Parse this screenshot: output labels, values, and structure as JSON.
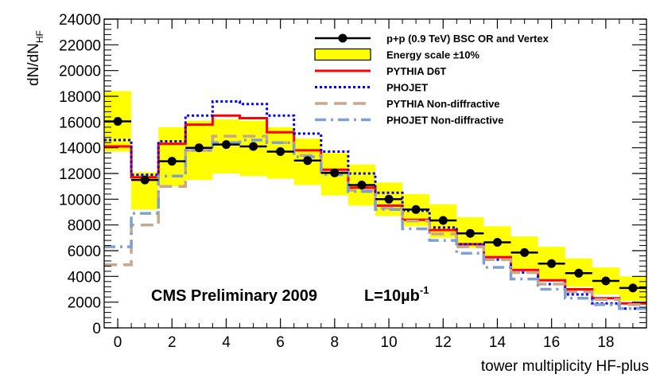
{
  "chart_data": {
    "type": "histogram",
    "xlabel": "tower multiplicity HF-plus",
    "ylabel": "dN/dN",
    "ylabel_sub": "HF",
    "xlim": [
      -0.5,
      19.5
    ],
    "ylim": [
      0,
      24000
    ],
    "x_ticks": [
      0,
      2,
      4,
      6,
      8,
      10,
      12,
      14,
      16,
      18
    ],
    "x_tick_labels": [
      "0",
      "2",
      "4",
      "6",
      "8",
      "10",
      "12",
      "14",
      "16",
      "18"
    ],
    "y_ticks": [
      0,
      2000,
      4000,
      6000,
      8000,
      10000,
      12000,
      14000,
      16000,
      18000,
      20000,
      22000,
      24000
    ],
    "y_tick_labels": [
      "0",
      "2000",
      "4000",
      "6000",
      "8000",
      "10000",
      "12000",
      "14000",
      "16000",
      "18000",
      "20000",
      "22000",
      "24000"
    ],
    "bin_edges": [
      -0.5,
      0.5,
      1.5,
      2.5,
      3.5,
      4.5,
      5.5,
      6.5,
      7.5,
      8.5,
      9.5,
      10.5,
      11.5,
      12.5,
      13.5,
      14.5,
      15.5,
      16.5,
      17.5,
      18.5,
      19.5
    ],
    "series": [
      {
        "name": "p+p (0.9 TeV) BSC OR and Vertex",
        "style": "points",
        "color": "#000000",
        "x": [
          0,
          1,
          2,
          3,
          4,
          5,
          6,
          7,
          8,
          9,
          10,
          11,
          12,
          13,
          14,
          15,
          16,
          17,
          18,
          19
        ],
        "values": [
          16050,
          11500,
          12950,
          14000,
          14250,
          14100,
          13700,
          13000,
          12050,
          11100,
          10000,
          9200,
          8350,
          7350,
          6650,
          5850,
          5000,
          4250,
          3650,
          3100
        ]
      },
      {
        "name": "Energy scale ±10%",
        "style": "band",
        "color": "#ffff00",
        "x": [
          0,
          1,
          2,
          3,
          4,
          5,
          6,
          7,
          8,
          9,
          10,
          11,
          12,
          13,
          14,
          15,
          16,
          17,
          18,
          19
        ],
        "low": [
          13700,
          9200,
          11000,
          11500,
          12000,
          11800,
          11600,
          11100,
          10300,
          9500,
          8700,
          7900,
          7000,
          6200,
          5400,
          4600,
          3800,
          3200,
          2600,
          2100
        ],
        "high": [
          18400,
          12100,
          15600,
          16100,
          16200,
          16100,
          15600,
          14700,
          13600,
          12700,
          11300,
          10400,
          9600,
          8600,
          7900,
          7100,
          6300,
          5400,
          4700,
          4000
        ]
      },
      {
        "name": "PYTHIA D6T",
        "style": "solid",
        "color": "#ff0000",
        "values": [
          14100,
          11700,
          14300,
          15800,
          16500,
          16300,
          15200,
          13800,
          12300,
          10900,
          9500,
          8400,
          7600,
          6500,
          5500,
          4500,
          3700,
          3000,
          2300,
          1900
        ]
      },
      {
        "name": "PHOJET",
        "style": "dotted",
        "color": "#0000ff",
        "values": [
          14600,
          11900,
          14500,
          16500,
          17600,
          17400,
          16500,
          15100,
          13700,
          12000,
          10500,
          9100,
          7800,
          6500,
          5300,
          4300,
          3400,
          2600,
          1900,
          1500
        ]
      },
      {
        "name": "PYTHIA Non-diffractive",
        "style": "dashed",
        "color": "#c8a88c",
        "values": [
          4900,
          8000,
          11000,
          13800,
          14900,
          14900,
          14400,
          13400,
          12100,
          10700,
          9300,
          8300,
          7300,
          6300,
          5300,
          4300,
          3400,
          2800,
          2200,
          1800
        ]
      },
      {
        "name": "PHOJET Non-diffractive",
        "style": "dashdot",
        "color": "#7fa0d0",
        "values": [
          6300,
          8900,
          11800,
          13800,
          14400,
          14600,
          14400,
          13300,
          11900,
          10600,
          9200,
          7700,
          6800,
          5800,
          4700,
          3800,
          3000,
          2300,
          1800,
          1500
        ]
      }
    ],
    "annotation": "CMS Preliminary 2009",
    "luminosity": "L=10µb",
    "luminosity_exp": "-1"
  }
}
